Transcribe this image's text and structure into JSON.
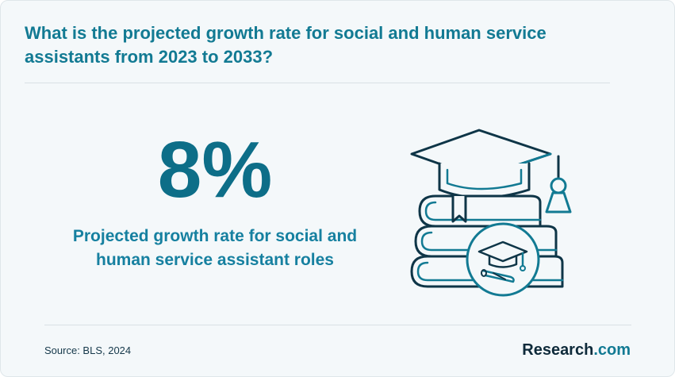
{
  "header": {
    "question": "What is the projected growth rate for social and human service assistants from 2023 to 2033?"
  },
  "stat": {
    "value": "8%",
    "description": "Projected growth rate for social and human service assistant roles"
  },
  "illustration": {
    "icon": "graduation-books-icon"
  },
  "footer": {
    "source": "Source: BLS, 2024",
    "brand_name": "Research",
    "brand_dot": ".",
    "brand_tld": "com"
  },
  "colors": {
    "background": "#f4f8fa",
    "accent": "#127a93",
    "stat": "#0d6e88",
    "icon_stroke": "#0e3547",
    "brand_text": "#0e2a3a"
  }
}
